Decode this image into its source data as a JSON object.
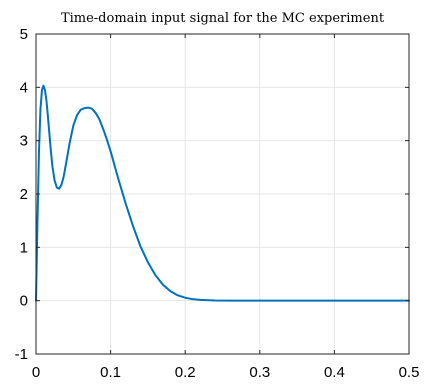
{
  "chart_data": {
    "type": "line",
    "title": "Time-domain input signal for the MC experiment",
    "xlabel": "",
    "ylabel": "",
    "xlim": [
      0,
      0.5
    ],
    "ylim": [
      -1,
      5
    ],
    "xticks": [
      0,
      0.1,
      0.2,
      0.3,
      0.4,
      0.5
    ],
    "xtick_labels": [
      "0",
      "0.1",
      "0.2",
      "0.3",
      "0.4",
      "0.5"
    ],
    "yticks": [
      -1,
      0,
      1,
      2,
      3,
      4,
      5
    ],
    "ytick_labels": [
      "-1",
      "0",
      "1",
      "2",
      "3",
      "4",
      "5"
    ],
    "grid": true,
    "legend": "none",
    "colors": {
      "series": "#0072bd",
      "grid": "#e6e6e6",
      "axis": "#262626"
    },
    "series": [
      {
        "x": [
          0,
          0.002,
          0.004,
          0.006,
          0.008,
          0.01,
          0.012,
          0.014,
          0.016,
          0.018,
          0.02,
          0.022,
          0.025,
          0.028,
          0.031,
          0.034,
          0.037,
          0.04,
          0.045,
          0.05,
          0.055,
          0.06,
          0.065,
          0.07,
          0.075,
          0.08,
          0.085,
          0.09,
          0.095,
          0.1,
          0.11,
          0.12,
          0.13,
          0.14,
          0.15,
          0.16,
          0.17,
          0.18,
          0.19,
          0.2,
          0.21,
          0.22,
          0.24,
          0.26,
          0.28,
          0.3,
          0.35,
          0.4,
          0.45,
          0.5
        ],
        "y": [
          0.0,
          1.5,
          2.8,
          3.6,
          3.95,
          4.03,
          3.95,
          3.75,
          3.45,
          3.12,
          2.8,
          2.52,
          2.25,
          2.12,
          2.1,
          2.17,
          2.32,
          2.55,
          2.95,
          3.28,
          3.48,
          3.58,
          3.61,
          3.62,
          3.6,
          3.52,
          3.4,
          3.22,
          3.02,
          2.8,
          2.3,
          1.83,
          1.4,
          1.02,
          0.72,
          0.48,
          0.3,
          0.18,
          0.1,
          0.055,
          0.028,
          0.014,
          0.004,
          0.001,
          0.0,
          0.0,
          0.0,
          0.0,
          0.0,
          0.0
        ]
      }
    ]
  }
}
